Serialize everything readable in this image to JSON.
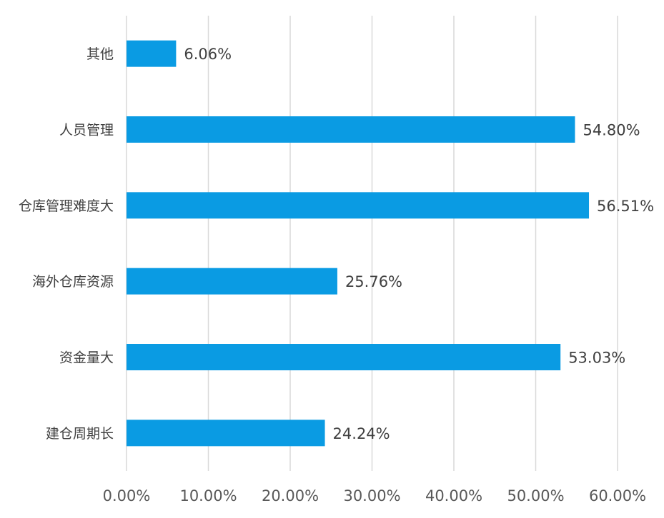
{
  "chart_data": {
    "type": "bar",
    "orientation": "horizontal",
    "title": "",
    "xlabel": "",
    "ylabel": "",
    "categories": [
      "其他",
      "人员管理",
      "仓库管理难度大",
      "海外仓库资源",
      "资金量大",
      "建仓周期长"
    ],
    "values": [
      6.06,
      54.8,
      56.51,
      25.76,
      53.03,
      24.24
    ],
    "value_labels": [
      "6.06%",
      "54.80%",
      "56.51%",
      "25.76%",
      "53.03%",
      "24.24%"
    ],
    "xlim": [
      0,
      60
    ],
    "x_ticks": [
      0,
      10,
      20,
      30,
      40,
      50,
      60
    ],
    "x_tick_labels": [
      "0.00%",
      "10.00%",
      "20.00%",
      "30.00%",
      "40.00%",
      "50.00%",
      "60.00%"
    ],
    "unit": "%",
    "grid": true,
    "legend": "none",
    "colors": {
      "bar": "#0a9be3",
      "grid": "#d9d9d9",
      "text": "#404040"
    }
  }
}
